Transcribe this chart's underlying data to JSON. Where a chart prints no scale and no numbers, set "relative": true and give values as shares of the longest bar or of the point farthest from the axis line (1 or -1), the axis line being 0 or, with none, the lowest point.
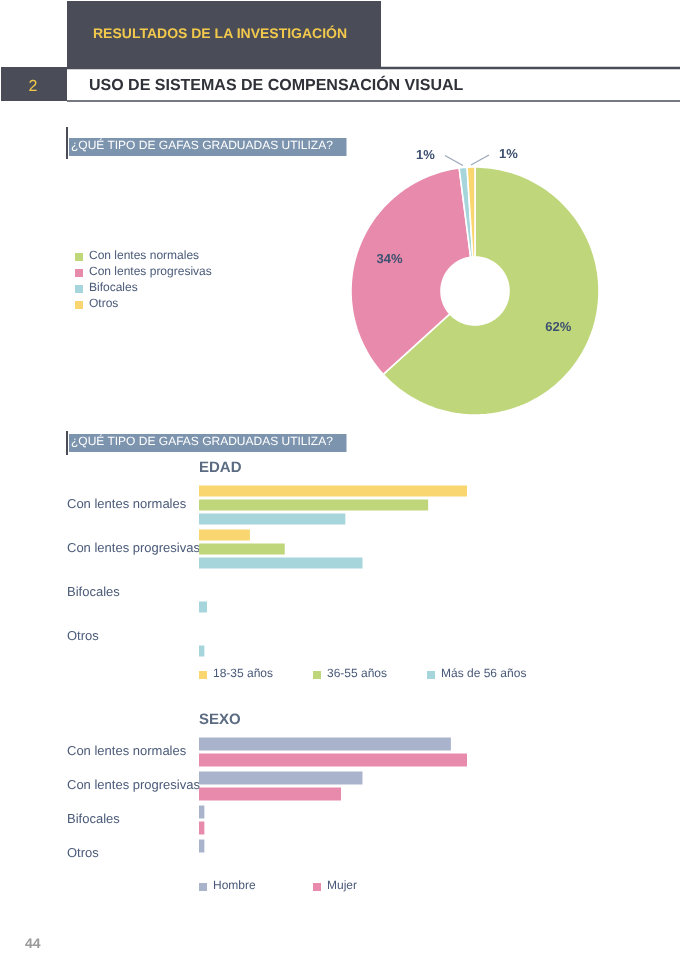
{
  "chart_data": [
    {
      "type": "donut",
      "title": "¿QUÉ TIPO DE GAFAS GRADUADAS UTILIZA?",
      "annotations": [
        "RESULTADOS DE LA INVESTIGACIÓN",
        "2",
        "USO DE SISTEMAS DE COMPENSACIÓN VISUAL"
      ],
      "categories": [
        "Con lentes normales",
        "Con lentes progresivas",
        "Bifocales",
        "Otros"
      ],
      "values": [
        62,
        34,
        1,
        1
      ],
      "value_labels": [
        "62%",
        "34%",
        "1%",
        "1%"
      ],
      "colors": [
        "#bfd67a",
        "#e88aab",
        "#a6d5dc",
        "#f9d66f"
      ],
      "legend": "left"
    },
    {
      "type": "bar",
      "orientation": "horizontal",
      "relative": true,
      "title": "¿QUÉ TIPO DE GAFAS GRADUADAS UTILIZA?",
      "subtitle": "EDAD",
      "categories": [
        "Con lentes normales",
        "Con lentes progresivas",
        "Bifocales",
        "Otros"
      ],
      "series": [
        {
          "name": "18-35 años",
          "color": "#f9d66f",
          "values": [
            1,
            0.19,
            0,
            0
          ]
        },
        {
          "name": "36-55 años",
          "color": "#bfd67a",
          "values": [
            0.855,
            0.32,
            0,
            0
          ]
        },
        {
          "name": "Más de 56 años",
          "color": "#a6d5dc",
          "values": [
            0.546,
            0.61,
            0.03,
            0.02
          ]
        }
      ],
      "legend": "bottom"
    },
    {
      "type": "bar",
      "orientation": "horizontal",
      "relative": true,
      "title": "SEXO",
      "annotations": [
        "44"
      ],
      "categories": [
        "Con lentes normales",
        "Con lentes progresivas",
        "Bifocales",
        "Otros"
      ],
      "series": [
        {
          "name": "Hombre",
          "color": "#a9b4cc",
          "values": [
            0.94,
            0.61,
            0.02,
            0.02
          ]
        },
        {
          "name": "Mujer",
          "color": "#e88aab",
          "values": [
            1,
            0.53,
            0.02,
            0
          ]
        }
      ],
      "legend": "bottom"
    }
  ]
}
